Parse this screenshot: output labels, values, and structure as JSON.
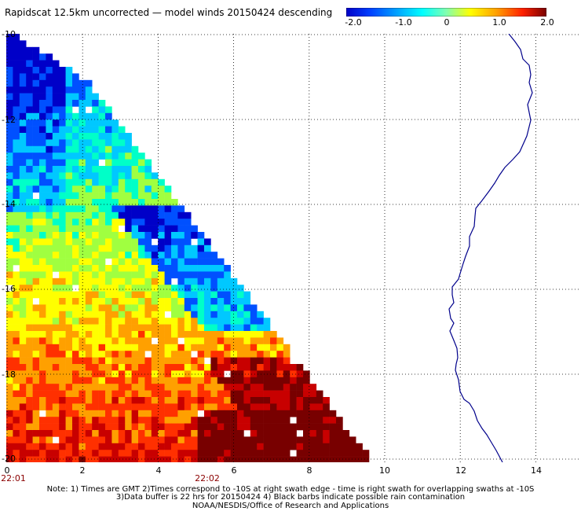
{
  "title": "Rapidscat 12.5km uncorrected — model winds 20150424 descending",
  "colorbar": {
    "min": -2.0,
    "max": 2.0,
    "tick_labels": [
      "-2.0",
      "-1.0",
      "0",
      "1.0",
      "2.0"
    ],
    "tick_values": [
      -2.0,
      -1.0,
      0,
      1.0,
      2.0
    ],
    "colors": [
      "#0000c8",
      "#0050ff",
      "#00c8ff",
      "#00ffc8",
      "#a0ff40",
      "#ffff00",
      "#ffa000",
      "#ff3000",
      "#c80000",
      "#780000"
    ]
  },
  "y_axis": {
    "tick_labels": [
      "-10",
      "-12",
      "-14",
      "-16",
      "-18",
      "-20"
    ],
    "tick_values": [
      -10,
      -12,
      -14,
      -16,
      -18,
      -20
    ]
  },
  "x_axis": {
    "tick_labels": [
      "0",
      "2",
      "4",
      "6",
      "8",
      "10",
      "12",
      "14"
    ],
    "tick_values": [
      0,
      2,
      4,
      6,
      8,
      10,
      12,
      14
    ]
  },
  "time_labels": [
    {
      "text": "22:01",
      "x": 0
    },
    {
      "text": "22:02",
      "x": 5
    }
  ],
  "notes": {
    "line1": "Note: 1) Times are GMT 2)Times correspond to -10S at right swath edge - time is right swath for overlapping swaths at -10S",
    "line2": "3)Data buffer is 22 hrs for 20150424 4) Black barbs indicate possible rain contamination",
    "line3": "NOAA/NESDIS/Office of Research and Applications"
  },
  "map": {
    "coastline_color": "#00008b",
    "grid_color": "#000000",
    "swath_edge_start": {
      "x": 2.0,
      "y": -11.0
    },
    "swath_edge_end": {
      "x": 9.6,
      "y": -20.0
    }
  }
}
